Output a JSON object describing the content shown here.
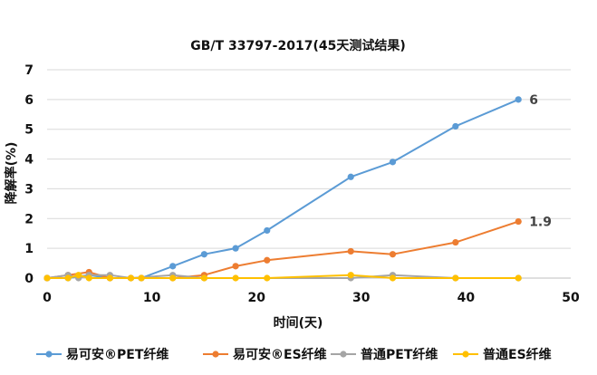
{
  "chart_data": {
    "type": "line",
    "title": "GB/T 33797-2017(45天测试结果)",
    "xlabel": "时间(天)",
    "ylabel": "降解率(%)",
    "xlim": [
      0,
      50
    ],
    "ylim": [
      0,
      7
    ],
    "x_ticks": [
      0,
      10,
      20,
      30,
      40,
      50
    ],
    "y_ticks": [
      0,
      1,
      2,
      3,
      4,
      5,
      6,
      7
    ],
    "grid": "horizontal",
    "legend_position": "bottom",
    "series": [
      {
        "name": "易可安®PET纤维",
        "color": "#5B9BD5",
        "points": [
          [
            0,
            0
          ],
          [
            2,
            0
          ],
          [
            4,
            0.1
          ],
          [
            6,
            0
          ],
          [
            9,
            0
          ],
          [
            12,
            0.4
          ],
          [
            15,
            0.8
          ],
          [
            18,
            1.0
          ],
          [
            21,
            1.6
          ],
          [
            29,
            3.4
          ],
          [
            33,
            3.9
          ],
          [
            39,
            5.1
          ],
          [
            45,
            6.0
          ]
        ],
        "end_label": "6"
      },
      {
        "name": "易可安®ES纤维",
        "color": "#ED7D31",
        "points": [
          [
            0,
            0
          ],
          [
            2,
            0.1
          ],
          [
            4,
            0.2
          ],
          [
            6,
            0
          ],
          [
            8,
            0
          ],
          [
            9,
            0
          ],
          [
            12,
            0
          ],
          [
            15,
            0.1
          ],
          [
            18,
            0.4
          ],
          [
            21,
            0.6
          ],
          [
            29,
            0.9
          ],
          [
            33,
            0.8
          ],
          [
            39,
            1.2
          ],
          [
            45,
            1.9
          ]
        ],
        "end_label": "1.9"
      },
      {
        "name": "普通PET纤维",
        "color": "#A5A5A5",
        "points": [
          [
            0,
            0
          ],
          [
            2,
            0.1
          ],
          [
            3,
            0
          ],
          [
            4,
            0.1
          ],
          [
            6,
            0.1
          ],
          [
            8,
            0
          ],
          [
            12,
            0.1
          ],
          [
            15,
            0
          ],
          [
            29,
            0
          ],
          [
            33,
            0.1
          ],
          [
            39,
            0
          ],
          [
            45,
            0
          ]
        ],
        "end_label": ""
      },
      {
        "name": "普通ES纤维",
        "color": "#FFC000",
        "points": [
          [
            0,
            0
          ],
          [
            2,
            0
          ],
          [
            3,
            0.1
          ],
          [
            4,
            0
          ],
          [
            6,
            0
          ],
          [
            8,
            0
          ],
          [
            9,
            0
          ],
          [
            12,
            0
          ],
          [
            15,
            0
          ],
          [
            18,
            0
          ],
          [
            21,
            0
          ],
          [
            29,
            0.1
          ],
          [
            33,
            0
          ],
          [
            39,
            0
          ],
          [
            45,
            0
          ]
        ],
        "end_label": ""
      }
    ]
  }
}
